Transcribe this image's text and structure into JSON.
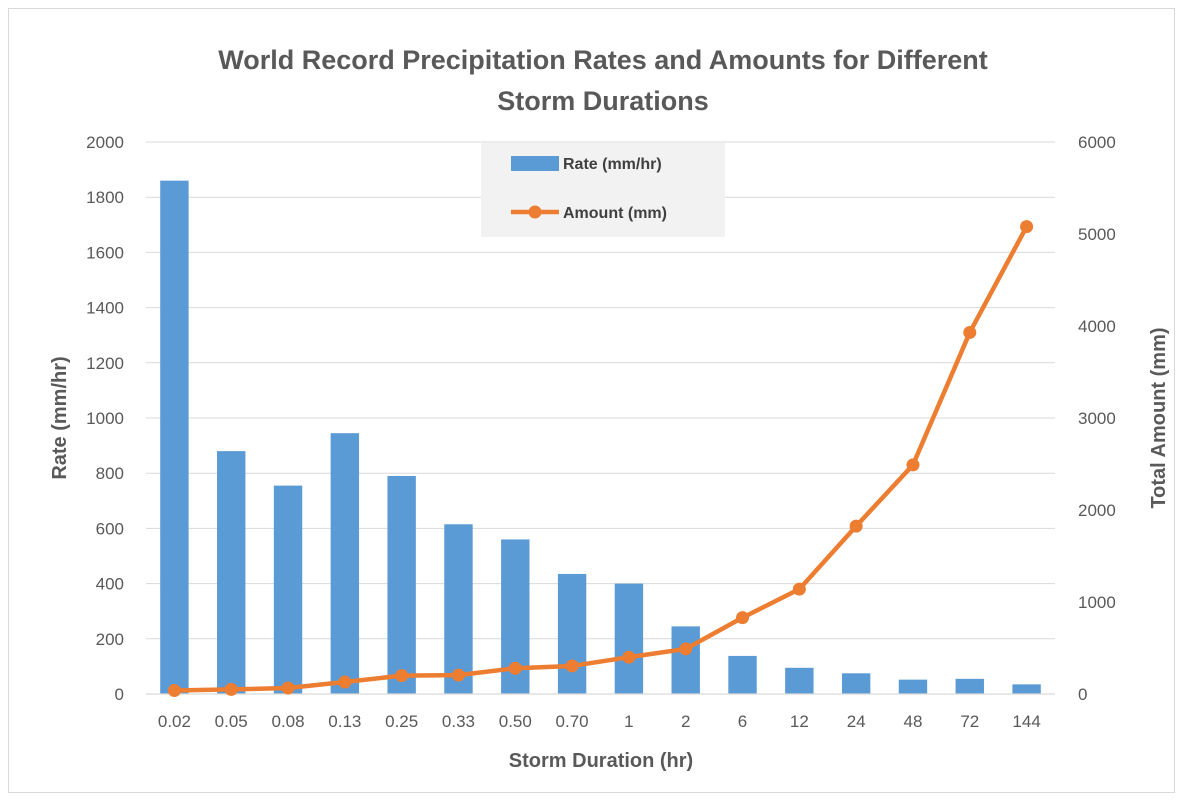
{
  "chart_data": {
    "type": "bar",
    "title": "World Record Precipitation Rates and Amounts for Different Storm Durations",
    "title_lines": [
      "World Record Precipitation Rates and Amounts for Different",
      "Storm Durations"
    ],
    "xlabel": "Storm Duration (hr)",
    "ylabel": "Rate (mm/hr)",
    "y2label": "Total Amount (mm)",
    "categories": [
      "0.02",
      "0.05",
      "0.08",
      "0.13",
      "0.25",
      "0.33",
      "0.50",
      "0.70",
      "1",
      "2",
      "6",
      "12",
      "24",
      "48",
      "72",
      "144"
    ],
    "ylim": [
      0,
      2000
    ],
    "y2lim": [
      0,
      6000
    ],
    "yticks": [
      "0",
      "200",
      "400",
      "600",
      "800",
      "1000",
      "1200",
      "1400",
      "1600",
      "1800",
      "2000"
    ],
    "y2ticks": [
      "0",
      "1000",
      "2000",
      "3000",
      "4000",
      "5000",
      "6000"
    ],
    "grid": true,
    "legend_position": "top-center",
    "series": [
      {
        "name": "Rate (mm/hr)",
        "type": "bar",
        "axis": "left",
        "color": "#5b9bd5",
        "values": [
          1860,
          880,
          755,
          945,
          790,
          615,
          560,
          435,
          400,
          245,
          138,
          95,
          75,
          52,
          55,
          35
        ]
      },
      {
        "name": "Amount (mm)",
        "type": "line",
        "axis": "right",
        "color": "#ed7d31",
        "values": [
          38,
          50,
          65,
          130,
          200,
          205,
          280,
          305,
          400,
          490,
          830,
          1140,
          1825,
          2490,
          3930,
          5080
        ]
      }
    ]
  }
}
